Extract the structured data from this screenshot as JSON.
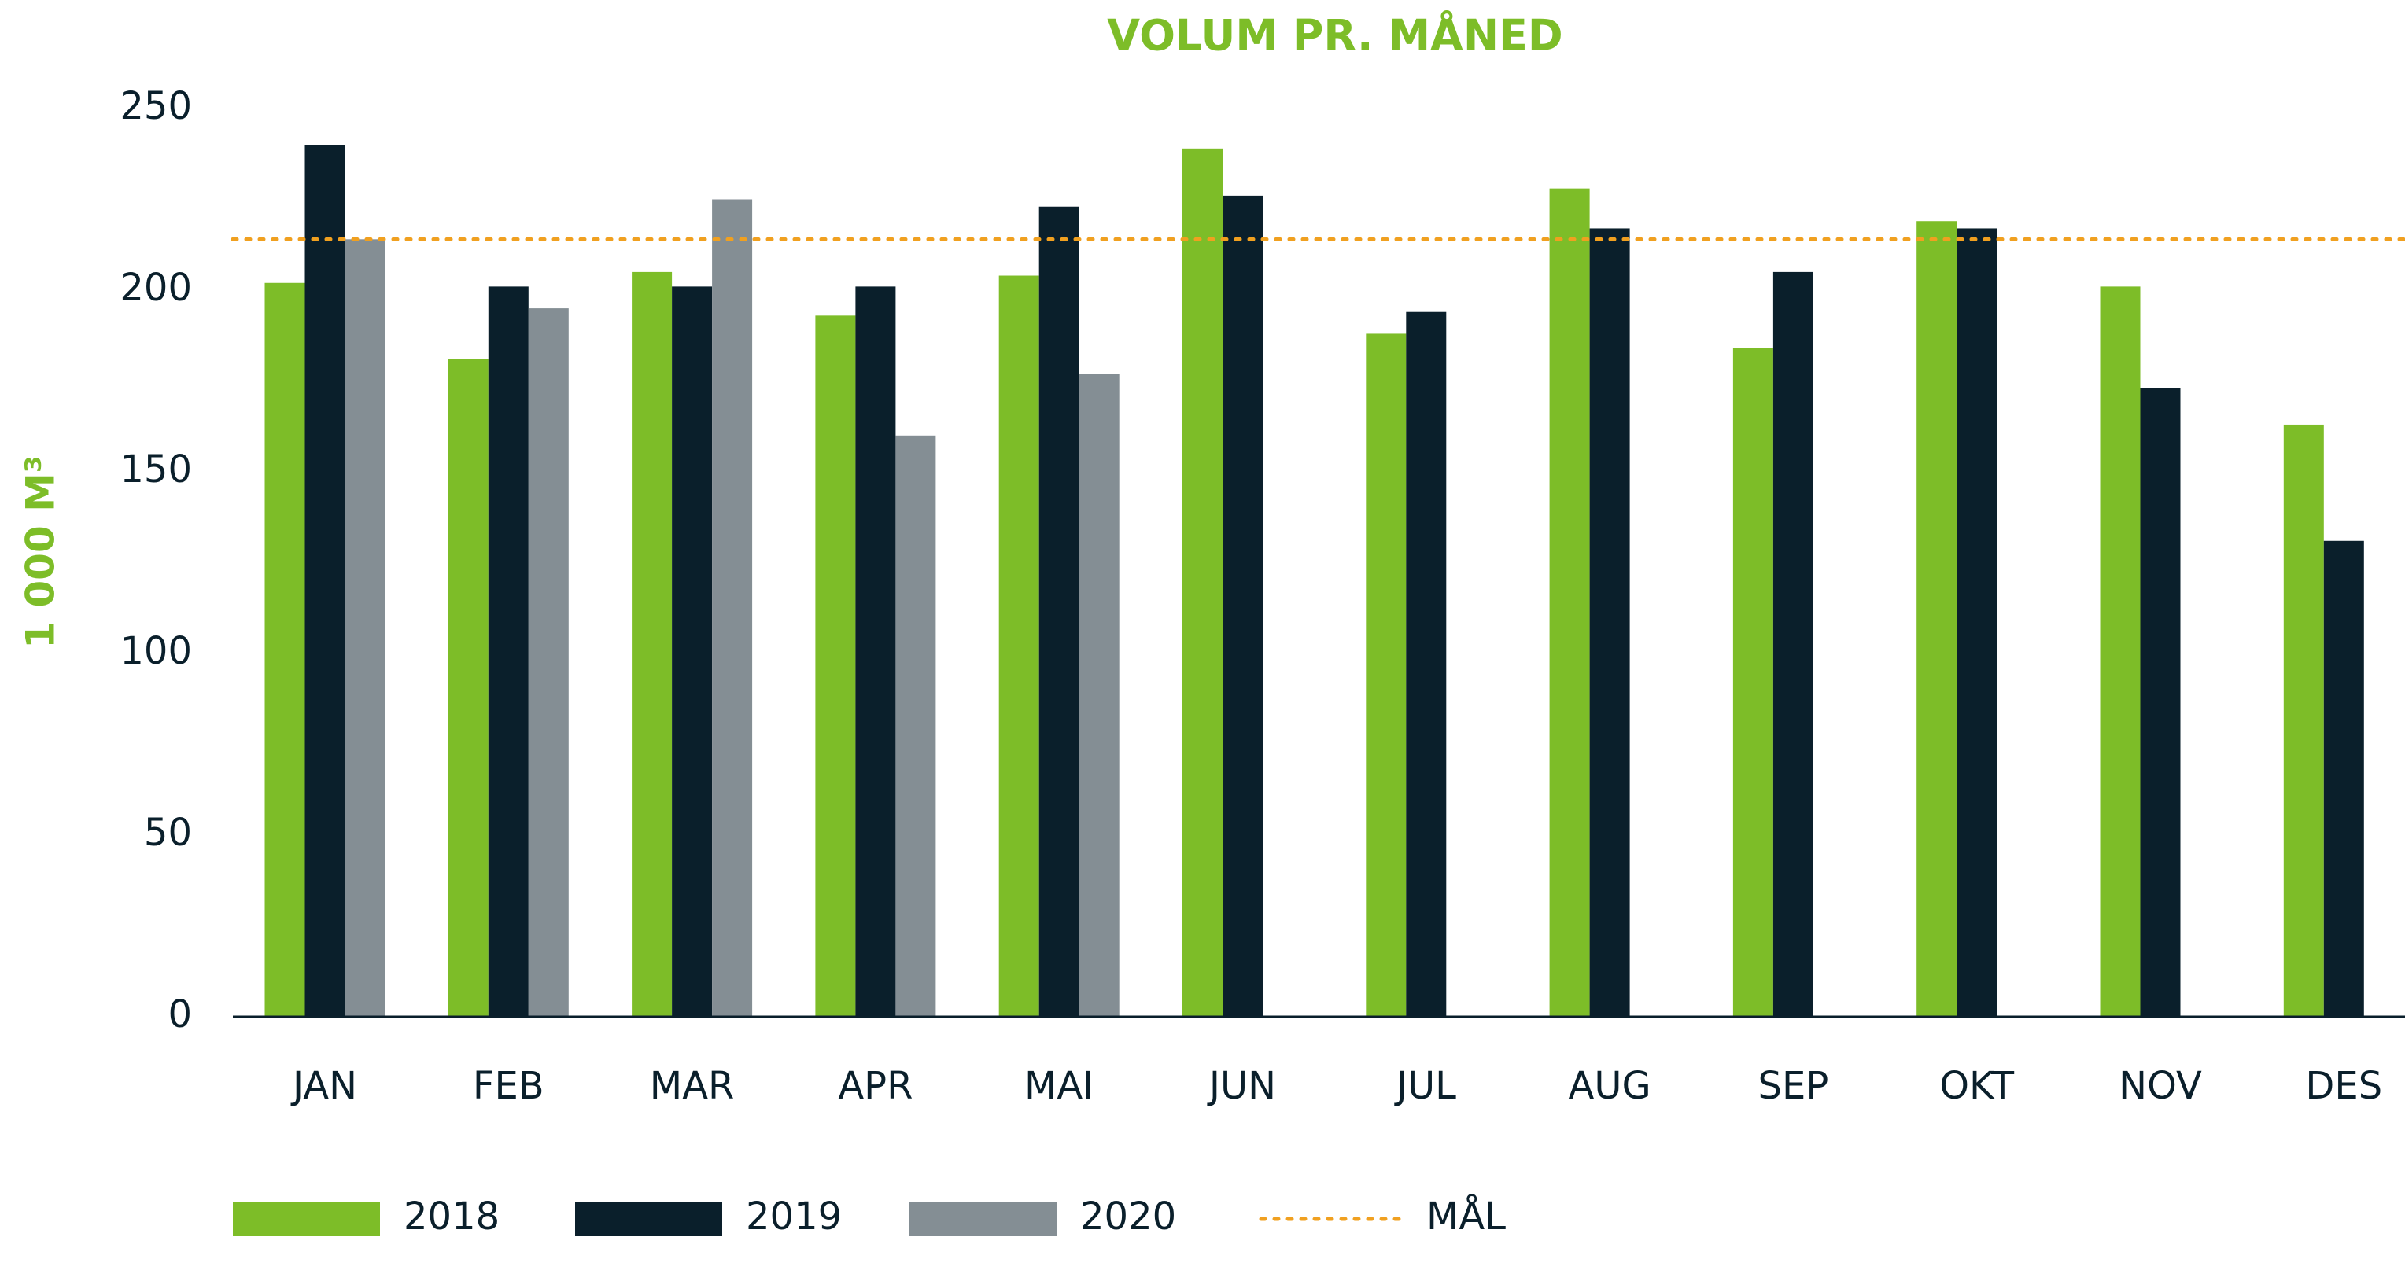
{
  "chart_data": {
    "type": "bar",
    "title": "VOLUM PR. MÅNED",
    "y_label": "1 000 M³",
    "categories": [
      "JAN",
      "FEB",
      "MAR",
      "APR",
      "MAI",
      "JUN",
      "JUL",
      "AUG",
      "SEP",
      "OKT",
      "NOV",
      "DES"
    ],
    "series": [
      {
        "name": "2018",
        "color": "#7dbd28",
        "values": [
          202,
          181,
          205,
          193,
          204,
          239,
          188,
          228,
          184,
          219,
          201,
          163
        ]
      },
      {
        "name": "2019",
        "color": "#0a1f2b",
        "values": [
          240,
          201,
          201,
          201,
          223,
          226,
          194,
          217,
          205,
          217,
          173,
          131
        ]
      },
      {
        "name": "2020",
        "color": "#848e94",
        "values": [
          214,
          195,
          225,
          160,
          177,
          null,
          null,
          null,
          null,
          null,
          null,
          null
        ]
      }
    ],
    "target": {
      "name": "MÅL",
      "value": 214,
      "color": "#f0a020"
    },
    "ylim": [
      0,
      250
    ],
    "yticks": [
      0,
      50,
      100,
      150,
      200,
      250
    ],
    "grid": false,
    "legend": "bottom"
  }
}
